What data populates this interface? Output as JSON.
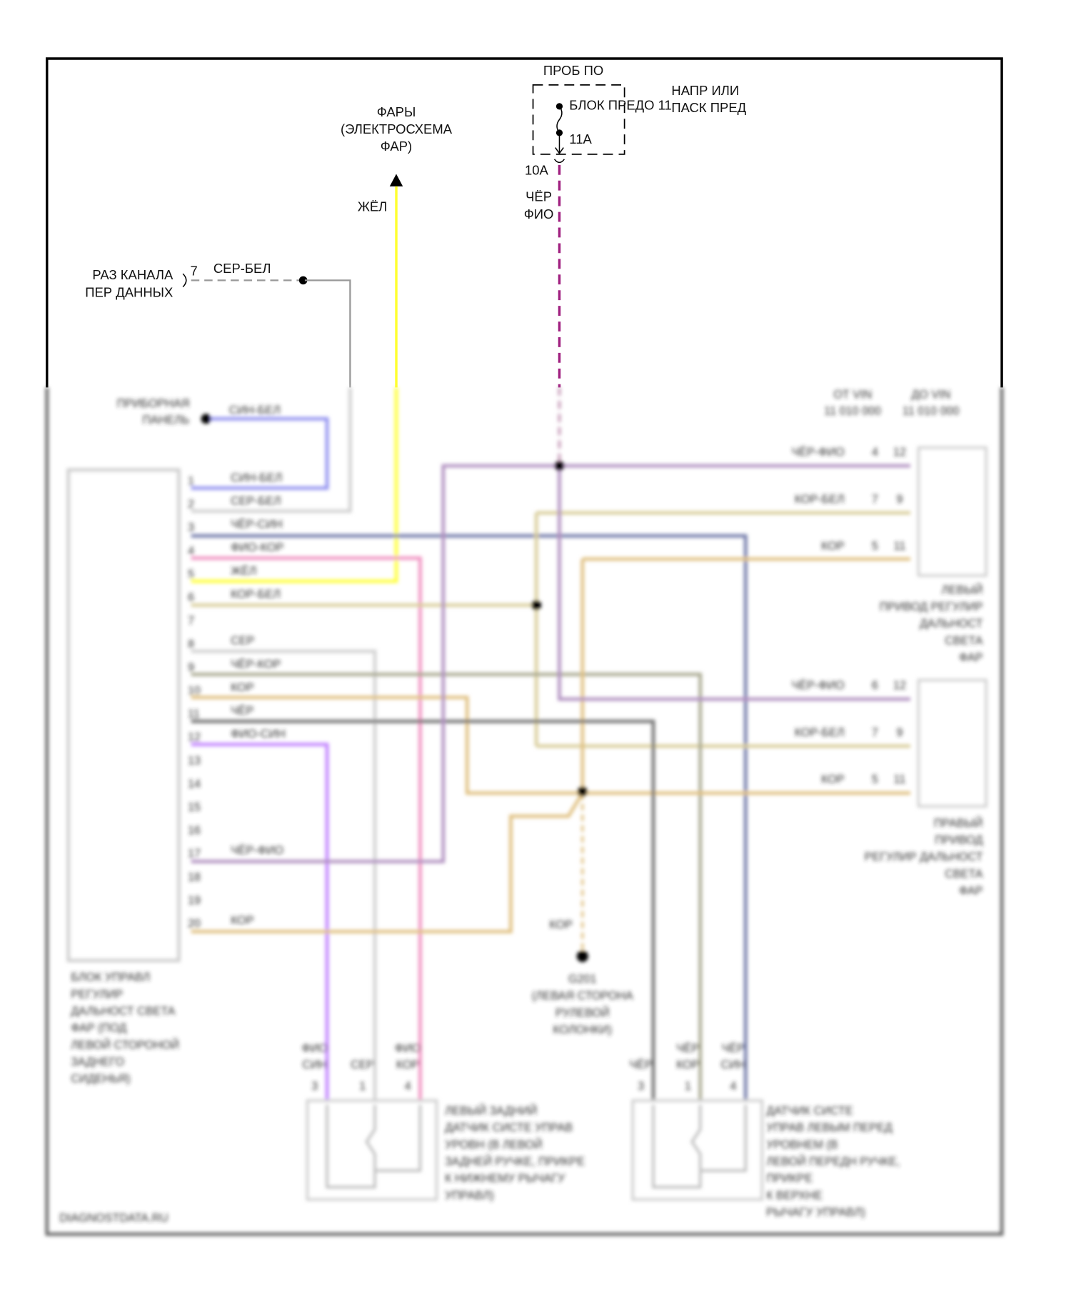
{
  "fuse_block": {
    "title": "ПРОБ ПО",
    "side_line1": "НАПР ИЛИ",
    "side_line2": "ПАСК ПРЕД",
    "fuse_name": "БЛОК ПРЕДО 11",
    "fuse_rating": "11А",
    "connector": "10А"
  },
  "power_wire": {
    "color_line1": "ЧЁР",
    "color_line2": "ФИО"
  },
  "headlights": {
    "line1": "ФАРЫ",
    "line2": "(ЭЛЕКТРОСХЕМА",
    "line3": "ФАР)",
    "wire": "ЖЁЛ"
  },
  "data_link": {
    "line1": "РАЗ КАНАЛА",
    "line2": "ПЕР ДАННЫХ",
    "pin": "7",
    "wire": "СЕР-БЕЛ"
  },
  "instrument_panel": {
    "line1": "ПРИБОРНАЯ",
    "line2": "ПАНЕЛЬ",
    "wire": "СИН-БЕЛ"
  },
  "module": {
    "label": [
      "БЛОК УПРАВЛ",
      "РЕГУЛИР",
      "ДАЛЬНОСТ СВЕТА",
      "ФАР (ПОД",
      "ЛЕВОЙ СТОРОНОЙ",
      "ЗАДНЕГО",
      "СИДЕНЬЯ)"
    ],
    "pins": [
      {
        "n": "1",
        "wire": "СИН-БЕЛ"
      },
      {
        "n": "2",
        "wire": "СЕР-БЕЛ"
      },
      {
        "n": "3",
        "wire": "ЧЁР-СИН"
      },
      {
        "n": "4",
        "wire": "ФИО-КОР"
      },
      {
        "n": "5",
        "wire": "ЖЁЛ"
      },
      {
        "n": "6",
        "wire": "КОР-БЕЛ"
      },
      {
        "n": "7",
        "wire": ""
      },
      {
        "n": "8",
        "wire": "СЕР"
      },
      {
        "n": "9",
        "wire": "ЧЁР-КОР"
      },
      {
        "n": "10",
        "wire": "КОР"
      },
      {
        "n": "11",
        "wire": "ЧЁР"
      },
      {
        "n": "12",
        "wire": "ФИО-СИН"
      },
      {
        "n": "13",
        "wire": ""
      },
      {
        "n": "14",
        "wire": ""
      },
      {
        "n": "15",
        "wire": ""
      },
      {
        "n": "16",
        "wire": ""
      },
      {
        "n": "17",
        "wire": "ЧЁР-ФИО"
      },
      {
        "n": "18",
        "wire": ""
      },
      {
        "n": "19",
        "wire": ""
      },
      {
        "n": "20",
        "wire": "КОР"
      }
    ]
  },
  "vin_notes": {
    "left": [
      "ОТ VIN",
      "11 010 000"
    ],
    "right": [
      "ДО VIN",
      "11 010 000"
    ]
  },
  "left_actuator": {
    "wires": [
      {
        "wire": "ЧЁР-ФИО",
        "a": "4",
        "b": "12"
      },
      {
        "wire": "КОР-БЕЛ",
        "a": "7",
        "b": "9"
      },
      {
        "wire": "КОР",
        "a": "5",
        "b": "11"
      }
    ],
    "label": [
      "ЛЕВЫЙ",
      "ПРИВОД РЕГУЛИР",
      "ДАЛЬНОСТ",
      "СВЕТА",
      "ФАР"
    ]
  },
  "right_actuator": {
    "wires": [
      {
        "wire": "ЧЁР-ФИО",
        "a": "6",
        "b": "12"
      },
      {
        "wire": "КОР-БЕЛ",
        "a": "7",
        "b": "9"
      },
      {
        "wire": "КОР",
        "a": "5",
        "b": "11"
      }
    ],
    "label": [
      "ПРАВЫЙ",
      "ПРИВОД",
      "РЕГУЛИР ДАЛЬНОСТ",
      "СВЕТА",
      "ФАР"
    ]
  },
  "ground": {
    "wire": "КОР",
    "label": [
      "G201",
      "(ЛЕВАЯ СТОРОНА",
      "РУЛЕВОЙ",
      "КОЛОНКИ)"
    ]
  },
  "rear_sensor": {
    "pins": [
      {
        "wire": [
          "ФИО",
          "СИН"
        ],
        "n": "3"
      },
      {
        "wire": [
          "",
          "СЕР"
        ],
        "n": "1"
      },
      {
        "wire": [
          "ФИО",
          "КОР"
        ],
        "n": "4"
      }
    ],
    "label": [
      "ЛЕВЫЙ ЗАДНИЙ",
      "ДАТЧИК СИСТЕ УПРАВ",
      "УРОВН (В ЛЕВОЙ",
      "ЗАДНЕЙ РУЧКЕ, ПРИКРЕ",
      "К НИЖНЕМУ РЫЧАГУ",
      "УПРАВЛ)"
    ]
  },
  "front_sensor": {
    "pins": [
      {
        "wire": [
          "",
          "ЧЁР"
        ],
        "n": "3"
      },
      {
        "wire": [
          "ЧЁР",
          "КОР"
        ],
        "n": "1"
      },
      {
        "wire": [
          "ЧЁР",
          "СИН"
        ],
        "n": "4"
      }
    ],
    "label": [
      "ДАТЧИК СИСТЕ",
      "УПРАВ ЛЕВЫМ ПЕРЕД",
      "УРОВНЕМ (В",
      "ЛЕВОЙ ПЕРЕДН РУЧКЕ,",
      "ПРИКРЕ",
      "К ВЕРХНЕ",
      "РЫЧАГУ УПРАВЛ)"
    ]
  },
  "watermark": "DIAGNOSTDATA.RU",
  "colors": {
    "yellow": "#ffff30",
    "purple_dash": "#a02080",
    "blue": "#9090f0",
    "pink": "#f090c0",
    "tan": "#d8cc98",
    "brown": "#e0c080",
    "violet": "#c080ff",
    "slate": "#7078a8"
  }
}
